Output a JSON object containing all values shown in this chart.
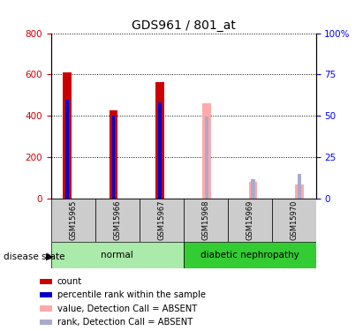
{
  "title": "GDS961 / 801_at",
  "samples": [
    "GSM15965",
    "GSM15966",
    "GSM15967",
    "GSM15968",
    "GSM15969",
    "GSM15970"
  ],
  "count_values": [
    610,
    425,
    565,
    null,
    null,
    null
  ],
  "rank_values": [
    480,
    400,
    465,
    null,
    null,
    null
  ],
  "absent_value_values": [
    null,
    null,
    null,
    460,
    80,
    70
  ],
  "absent_rank_values": [
    null,
    null,
    null,
    395,
    95,
    120
  ],
  "left_ylim": [
    0,
    800
  ],
  "right_ylim": [
    0,
    100
  ],
  "left_yticks": [
    0,
    200,
    400,
    600,
    800
  ],
  "right_yticks": [
    0,
    25,
    50,
    75,
    100
  ],
  "right_yticklabels": [
    "0",
    "25",
    "50",
    "75",
    "100%"
  ],
  "color_count": "#cc0000",
  "color_rank": "#0000cc",
  "color_absent_value": "#ffaaaa",
  "color_absent_rank": "#aaaacc",
  "color_normal_bg": "#aaeaaa",
  "color_diabetic_bg": "#33cc33",
  "color_gray_bg": "#cccccc",
  "legend_items": [
    {
      "color": "#cc0000",
      "label": "count"
    },
    {
      "color": "#0000cc",
      "label": "percentile rank within the sample"
    },
    {
      "color": "#ffaaaa",
      "label": "value, Detection Call = ABSENT"
    },
    {
      "color": "#aaaacc",
      "label": "rank, Detection Call = ABSENT"
    }
  ],
  "disease_state_label": "disease state",
  "title_fontsize": 10,
  "tick_fontsize": 7.5,
  "bar_width": 0.18,
  "rank_bar_width": 0.07,
  "absent_rank_bar_width": 0.08
}
